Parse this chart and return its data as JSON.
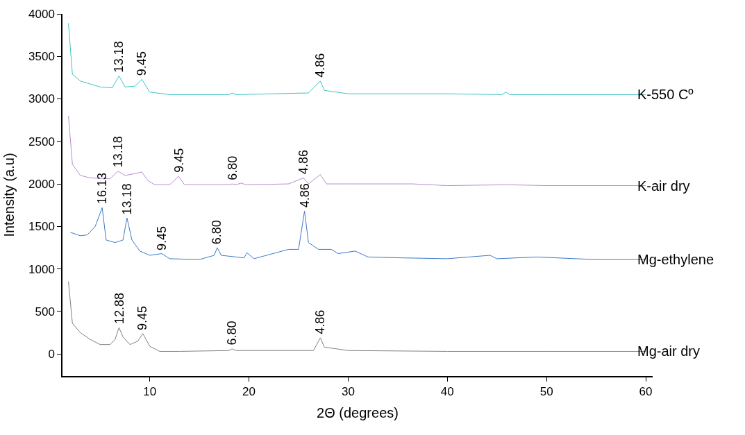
{
  "chart_data": {
    "type": "line",
    "xlabel": "2Θ (degrees)",
    "ylabel": "Intensity (a.u)",
    "xlim": [
      1.2,
      60.7
    ],
    "ylim": [
      -260,
      4000
    ],
    "xticks": [
      10,
      20,
      30,
      40,
      50,
      60
    ],
    "yticks": [
      0,
      500,
      1000,
      1500,
      2000,
      2500,
      3000,
      3500,
      4000
    ],
    "grid": false,
    "legend": false,
    "marker": "none",
    "line_style": "solid",
    "series": [
      {
        "name": "K-550 Cº",
        "color": "#3cc4c4",
        "x": [
          1.8,
          2.2,
          3,
          5,
          6.2,
          6.9,
          7.5,
          8.5,
          9.2,
          10,
          12,
          18,
          18.3,
          18.7,
          26,
          27.2,
          27.6,
          30,
          40,
          45.5,
          45.9,
          46.3,
          50,
          55,
          60
        ],
        "values": [
          3890,
          3290,
          3210,
          3140,
          3130,
          3270,
          3140,
          3150,
          3230,
          3080,
          3050,
          3050,
          3070,
          3050,
          3070,
          3210,
          3100,
          3060,
          3060,
          3050,
          3080,
          3050,
          3050,
          3050,
          3050
        ]
      },
      {
        "name": "K-air dry",
        "color": "#b48ed0",
        "x": [
          1.8,
          2.2,
          3,
          4,
          6,
          6.8,
          7.5,
          8.5,
          9.2,
          9.8,
          10.5,
          12,
          12.9,
          13.5,
          18,
          18.3,
          18.7,
          19.2,
          19.7,
          24,
          25.5,
          26,
          27.2,
          27.8,
          30,
          36.5,
          40,
          46,
          50,
          60
        ],
        "values": [
          2800,
          2230,
          2100,
          2070,
          2060,
          2150,
          2100,
          2120,
          2140,
          2040,
          1990,
          1990,
          2090,
          1990,
          1990,
          2000,
          1990,
          2010,
          1990,
          2000,
          2070,
          2000,
          2110,
          2000,
          2000,
          2000,
          1980,
          1990,
          1980,
          1980
        ]
      },
      {
        "name": "Mg-ethylene",
        "color": "#3a78c8",
        "x": [
          2,
          3,
          3.7,
          4.5,
          5.2,
          5.6,
          6.5,
          7.3,
          7.7,
          8.2,
          9,
          10,
          11.2,
          12,
          15,
          16.5,
          16.8,
          17.2,
          19.5,
          19.8,
          20.5,
          24,
          25,
          25.6,
          26,
          27,
          28.3,
          29,
          30.7,
          32,
          35.4,
          40,
          44.3,
          45,
          49,
          55,
          60
        ],
        "values": [
          1430,
          1390,
          1400,
          1500,
          1720,
          1340,
          1310,
          1340,
          1600,
          1340,
          1210,
          1160,
          1180,
          1120,
          1110,
          1160,
          1250,
          1160,
          1130,
          1190,
          1120,
          1230,
          1230,
          1680,
          1310,
          1230,
          1230,
          1180,
          1210,
          1140,
          1130,
          1120,
          1160,
          1120,
          1140,
          1110,
          1110
        ]
      },
      {
        "name": "Mg-air dry",
        "color": "#808080",
        "x": [
          1.8,
          2.2,
          3,
          4,
          5,
          6,
          6.5,
          6.9,
          7.3,
          8,
          8.8,
          9.3,
          10,
          11,
          13,
          18,
          18.3,
          18.7,
          21.5,
          26.5,
          27.2,
          27.6,
          30,
          40,
          50,
          60
        ],
        "values": [
          850,
          360,
          250,
          170,
          110,
          110,
          170,
          310,
          200,
          110,
          150,
          240,
          90,
          30,
          30,
          40,
          60,
          40,
          40,
          40,
          190,
          80,
          40,
          30,
          30,
          30
        ]
      }
    ],
    "annotations": [
      {
        "text": "13.18",
        "x": 6.9,
        "y": 3270
      },
      {
        "text": "9.45",
        "x": 9.2,
        "y": 3230
      },
      {
        "text": "4.86",
        "x": 27.2,
        "y": 3210
      },
      {
        "text": "13.18",
        "x": 6.8,
        "y": 2150
      },
      {
        "text": "9.45",
        "x": 12.9,
        "y": 2090
      },
      {
        "text": "6.80",
        "x": 18.3,
        "y": 2000
      },
      {
        "text": "4.86",
        "x": 25.5,
        "y": 2070
      },
      {
        "text": "16.13",
        "x": 5.2,
        "y": 1720
      },
      {
        "text": "13.18",
        "x": 7.7,
        "y": 1600
      },
      {
        "text": "9.45",
        "x": 11.2,
        "y": 1180
      },
      {
        "text": "6.80",
        "x": 16.8,
        "y": 1250
      },
      {
        "text": "4.86",
        "x": 25.6,
        "y": 1680
      },
      {
        "text": "12.88",
        "x": 6.9,
        "y": 310
      },
      {
        "text": "9.45",
        "x": 9.3,
        "y": 240
      },
      {
        "text": "6.80",
        "x": 18.3,
        "y": 60
      },
      {
        "text": "4.86",
        "x": 27.2,
        "y": 190
      }
    ]
  }
}
